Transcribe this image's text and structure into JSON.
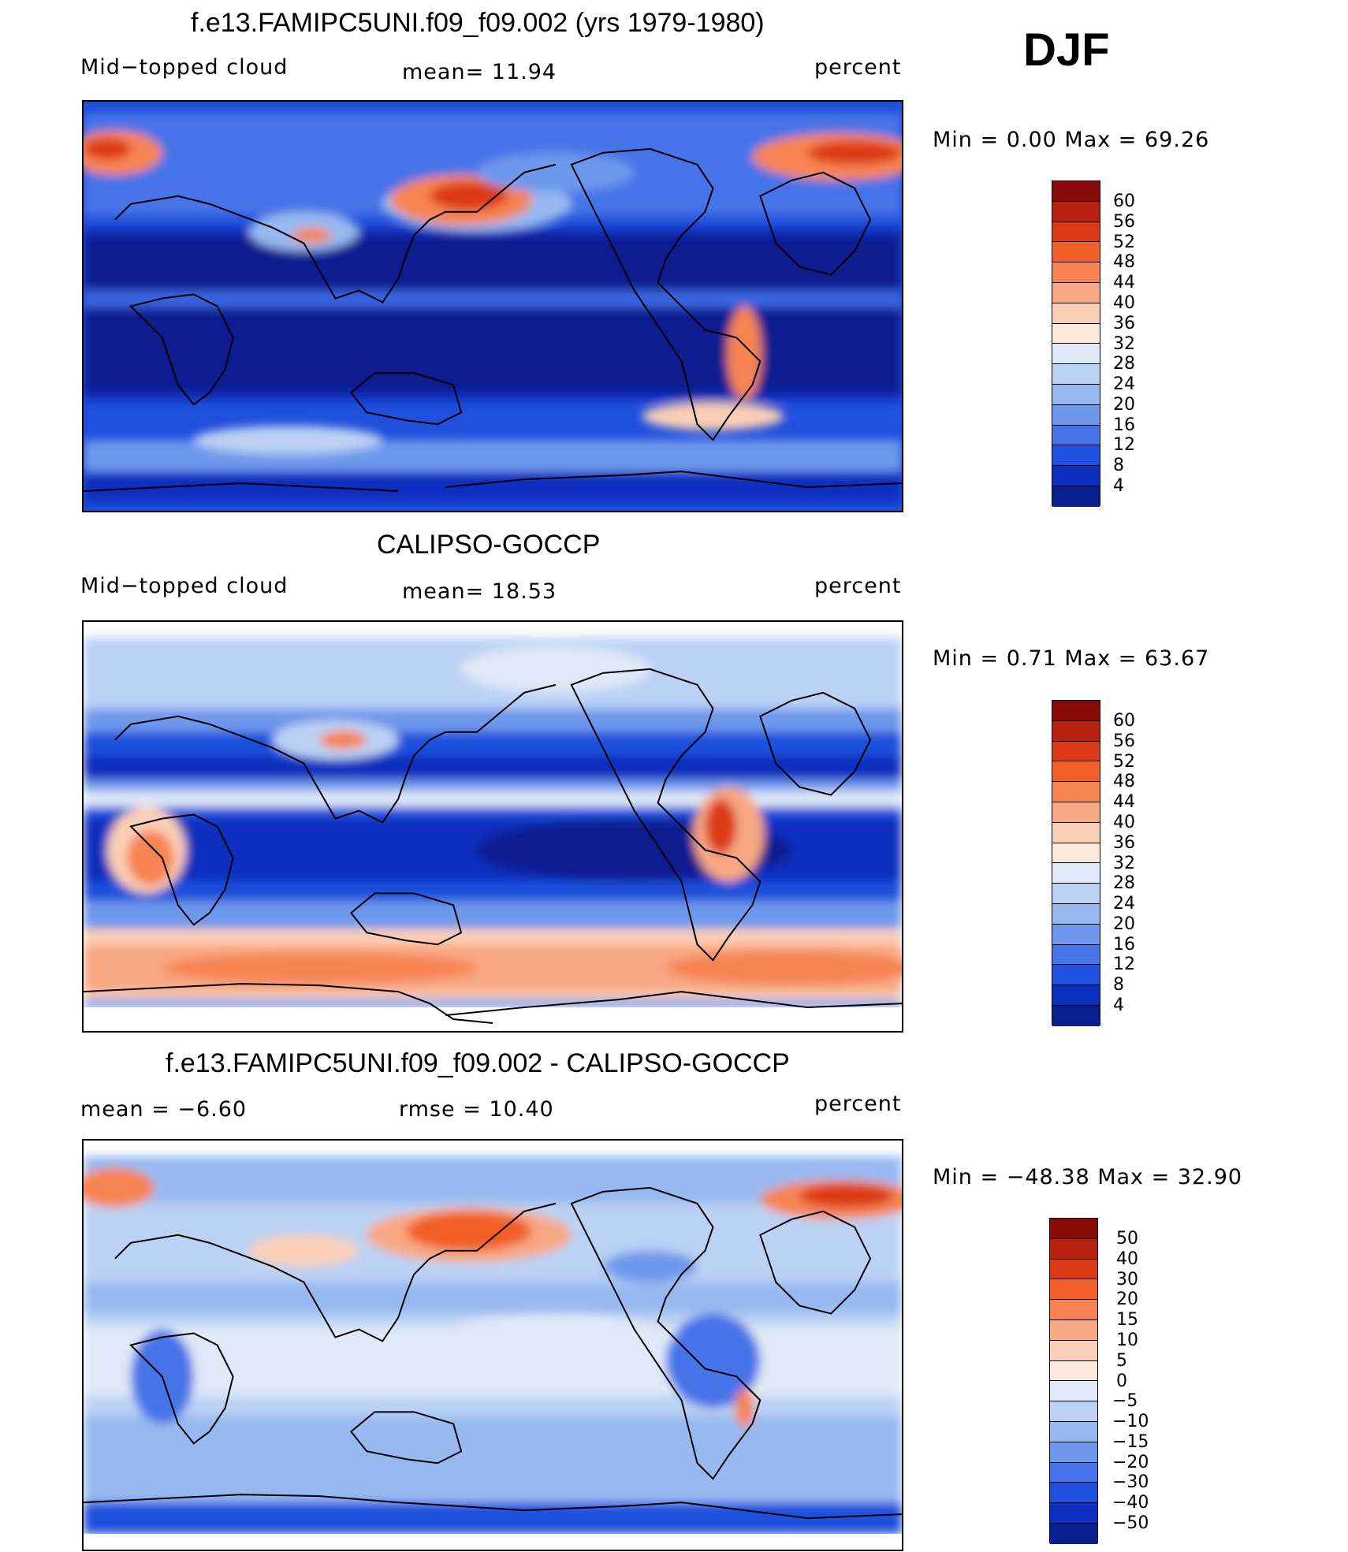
{
  "season": "DJF",
  "panels": [
    {
      "title": "f.e13.FAMIPC5UNI.f09_f09.002 (yrs 1979-1980)",
      "left_label": "Mid−topped  cloud",
      "center_label": "mean=   11.94",
      "right_label": "percent",
      "minmax": "Min  =     0.00  Max  =    69.26",
      "colorbar_labels": [
        "60",
        "56",
        "52",
        "48",
        "44",
        "40",
        "36",
        "32",
        "28",
        "24",
        "20",
        "16",
        "12",
        "8",
        "4"
      ]
    },
    {
      "title": "CALIPSO-GOCCP",
      "left_label": "Mid−topped  cloud",
      "center_label": "mean=   18.53",
      "right_label": "percent",
      "minmax": "Min  =     0.71  Max  =    63.67",
      "colorbar_labels": [
        "60",
        "56",
        "52",
        "48",
        "44",
        "40",
        "36",
        "32",
        "28",
        "24",
        "20",
        "16",
        "12",
        "8",
        "4"
      ]
    },
    {
      "title": "f.e13.FAMIPC5UNI.f09_f09.002 - CALIPSO-GOCCP",
      "left_label": "mean  =    −6.60",
      "center_label": "rmse  =    10.40",
      "right_label": "percent",
      "minmax": "Min  = −48.38  Max  =    32.90",
      "colorbar_labels": [
        "50",
        "40",
        "30",
        "20",
        "15",
        "10",
        "5",
        "0",
        "−5",
        "−10",
        "−15",
        "−20",
        "−30",
        "−40",
        "−50"
      ]
    }
  ],
  "colors": {
    "scale": [
      "#8b0b0b",
      "#b8200f",
      "#dc3a14",
      "#f25f28",
      "#f78452",
      "#f8a883",
      "#fbcfb6",
      "#fde8d9",
      "#dfe9f7",
      "#bcd2f4",
      "#97b9f0",
      "#6e98ec",
      "#4673e8",
      "#1f4fdc",
      "#0b2fbe",
      "#071f8f"
    ]
  }
}
